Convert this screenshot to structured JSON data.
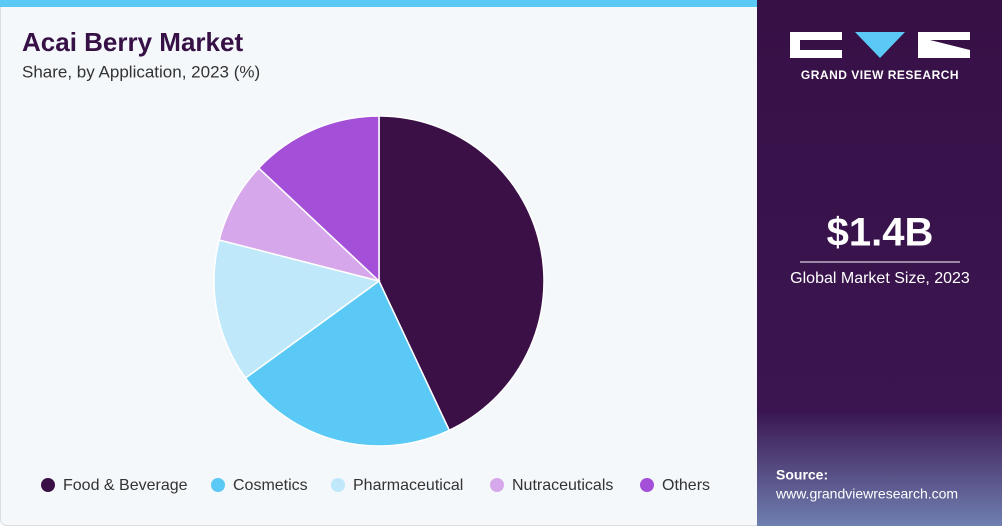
{
  "chart_data": {
    "type": "pie",
    "title": "Acai Berry Market",
    "subtitle": "Share, by Application, 2023 (%)",
    "categories": [
      "Food & Beverage",
      "Cosmetics",
      "Pharmaceutical",
      "Nutraceuticals",
      "Others"
    ],
    "values": [
      43,
      22,
      14,
      8,
      13
    ],
    "colors": [
      "#3a1047",
      "#5bc9f6",
      "#bfe8fa",
      "#d6a7ea",
      "#a44fd8"
    ],
    "legend": "bottom"
  },
  "sidebar": {
    "brand": "GRAND VIEW RESEARCH",
    "market_size": "$1.4B",
    "market_size_label": "Global Market Size, 2023",
    "source_label": "Source:",
    "source_url": "www.grandviewresearch.com"
  }
}
